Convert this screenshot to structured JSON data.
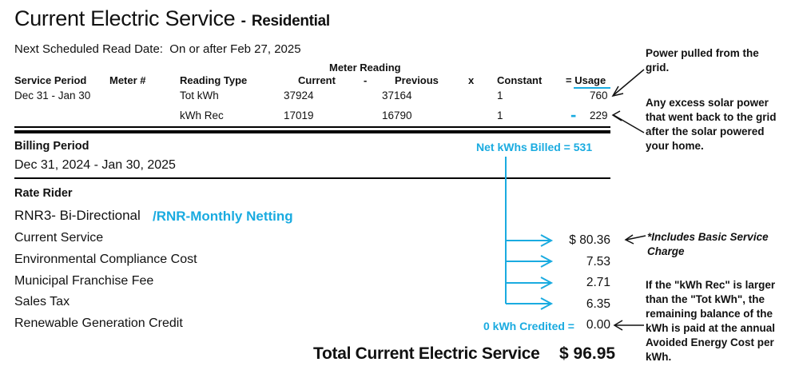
{
  "header": {
    "title": "Current Electric Service",
    "dash": "-",
    "subtitle": "Residential",
    "read_date_label": "Next Scheduled Read Date:",
    "read_date_value": "On or after Feb 27, 2025"
  },
  "meter_table": {
    "group_header": "Meter Reading",
    "columns": {
      "service_period": "Service Period",
      "meter": "Meter #",
      "reading_type": "Reading Type",
      "current": "Current",
      "minus": "-",
      "previous": "Previous",
      "times": "x",
      "constant": "Constant",
      "usage": "= Usage"
    },
    "rows": [
      {
        "service_period": "Dec 31 - Jan 30",
        "reading_type": "Tot kWh",
        "current": "37924",
        "previous": "37164",
        "constant": "1",
        "usage": "760"
      },
      {
        "service_period": "",
        "reading_type": "kWh Rec",
        "current": "17019",
        "previous": "16790",
        "constant": "1",
        "usage": "229"
      }
    ],
    "minus_sign": "-"
  },
  "billing": {
    "label": "Billing Period",
    "value": "Dec 31, 2024 - Jan 30, 2025",
    "net_kwh_billed": "Net kWhs Billed = 531"
  },
  "rate_rider": {
    "label": "Rate Rider",
    "value": "RNR3- Bi-Directional",
    "annotation": "/RNR-Monthly Netting"
  },
  "charges": [
    {
      "label": "Current Service",
      "amount": "$ 80.36"
    },
    {
      "label": "Environmental Compliance Cost",
      "amount": "7.53"
    },
    {
      "label": "Municipal Franchise Fee",
      "amount": "2.71"
    },
    {
      "label": "Sales Tax",
      "amount": "6.35"
    },
    {
      "label": "Renewable Generation Credit",
      "amount": "0.00"
    }
  ],
  "credit_annotation": "0 kWh Credited =",
  "total": {
    "label": "Total Current Electric Service",
    "amount": "$ 96.95"
  },
  "notes": {
    "grid": "Power pulled from the grid.",
    "solar": "Any excess solar power that went back to the grid after the solar powered your home.",
    "basic": "*Includes Basic Service Charge",
    "balance": "If the \"kWh Rec\" is larger than the \"Tot kWh\", the remaining balance of the kWh is paid at the annual Avoided Energy Cost per kWh."
  },
  "colors": {
    "annotation": "#1aabe0",
    "text": "#111111"
  }
}
